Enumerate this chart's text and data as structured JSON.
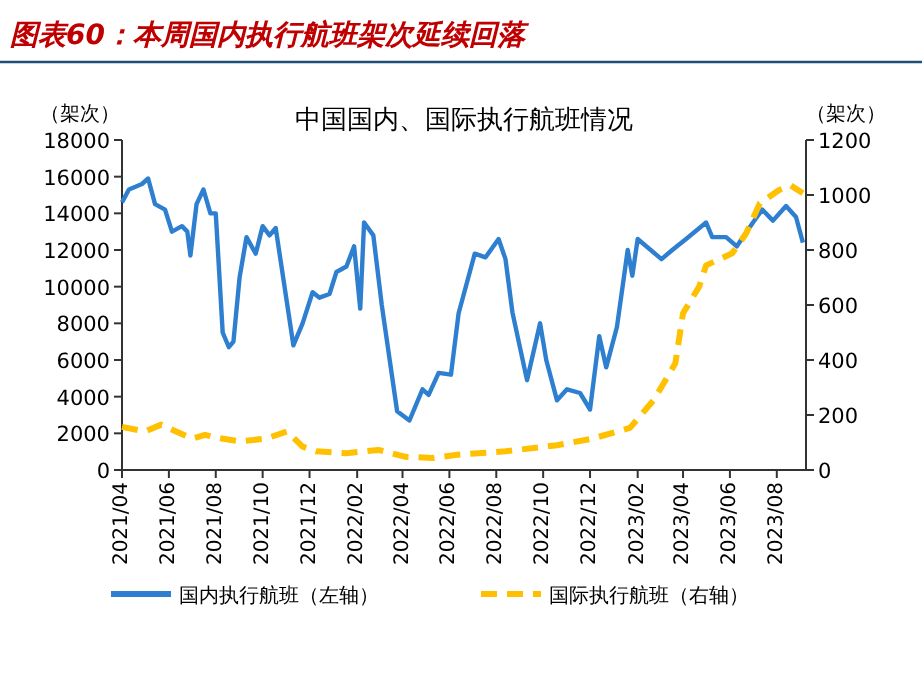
{
  "chart_data": {
    "type": "line",
    "title": "图表60：本周国内执行航班架次延续回落",
    "subtitle": "中国国内、国际执行航班情况",
    "ylabel": "（架次）",
    "y2label": "（架次）",
    "xlim": [
      "2021-04-01",
      "2023-09-08"
    ],
    "xticks": [
      {
        "value": "2021-04",
        "label": "2021/04"
      },
      {
        "value": "2021-06",
        "label": "2021/06"
      },
      {
        "value": "2021-08",
        "label": "2021/08"
      },
      {
        "value": "2021-10",
        "label": "2021/10"
      },
      {
        "value": "2021-12",
        "label": "2021/12"
      },
      {
        "value": "2022-02",
        "label": "2022/02"
      },
      {
        "value": "2022-04",
        "label": "2022/04"
      },
      {
        "value": "2022-06",
        "label": "2022/06"
      },
      {
        "value": "2022-08",
        "label": "2022/08"
      },
      {
        "value": "2022-10",
        "label": "2022/10"
      },
      {
        "value": "2022-12",
        "label": "2022/12"
      },
      {
        "value": "2023-02",
        "label": "2023/02"
      },
      {
        "value": "2023-04",
        "label": "2023/04"
      },
      {
        "value": "2023-06",
        "label": "2023/06"
      },
      {
        "value": "2023-08",
        "label": "2023/08"
      }
    ],
    "ylim": [
      0,
      18000
    ],
    "yticks": [
      0,
      2000,
      4000,
      6000,
      8000,
      10000,
      12000,
      14000,
      16000,
      18000
    ],
    "y2lim": [
      0,
      1200
    ],
    "y2ticks": [
      0,
      200,
      400,
      600,
      800,
      1000,
      1200
    ],
    "grid": false,
    "legend": "bottom",
    "marker": "none",
    "series": [
      {
        "name": "国内执行航班（左轴）",
        "color": "#2e7fd0",
        "line_style": "solid",
        "x": [
          "2021-04-01",
          "2021-04-10",
          "2021-04-27",
          "2021-05-05",
          "2021-05-14",
          "2021-05-27",
          "2021-06-05",
          "2021-06-18",
          "2021-06-25",
          "2021-06-29",
          "2021-07-07",
          "2021-07-16",
          "2021-07-25",
          "2021-08-01",
          "2021-08-10",
          "2021-08-18",
          "2021-08-24",
          "2021-09-01",
          "2021-09-10",
          "2021-09-22",
          "2021-10-01",
          "2021-10-10",
          "2021-10-18",
          "2021-11-10",
          "2021-11-22",
          "2021-12-05",
          "2021-12-14",
          "2021-12-27",
          "2022-01-05",
          "2022-01-18",
          "2022-01-28",
          "2022-02-05",
          "2022-02-10",
          "2022-02-22",
          "2022-03-05",
          "2022-03-25",
          "2022-04-10",
          "2022-04-27",
          "2022-05-05",
          "2022-05-18",
          "2022-06-03",
          "2022-06-13",
          "2022-07-04",
          "2022-07-18",
          "2022-08-04",
          "2022-08-13",
          "2022-08-22",
          "2022-09-10",
          "2022-09-27",
          "2022-10-05",
          "2022-10-19",
          "2022-11-01",
          "2022-11-18",
          "2022-12-01",
          "2022-12-13",
          "2022-12-22",
          "2023-01-05",
          "2023-01-19",
          "2023-01-25",
          "2023-02-01",
          "2023-03-04",
          "2023-03-18",
          "2023-04-05",
          "2023-05-01",
          "2023-05-09",
          "2023-05-27",
          "2023-06-10",
          "2023-07-01",
          "2023-07-13",
          "2023-07-27",
          "2023-08-13",
          "2023-08-26",
          "2023-09-04"
        ],
        "values": [
          14600,
          15300,
          15600,
          15900,
          14500,
          14200,
          13000,
          13300,
          13000,
          11700,
          14500,
          15300,
          14000,
          14000,
          7500,
          6700,
          7000,
          10500,
          12700,
          11800,
          13300,
          12800,
          13200,
          6800,
          8000,
          9700,
          9400,
          9600,
          10800,
          11100,
          12200,
          8800,
          13500,
          12800,
          9000,
          3200,
          2700,
          4400,
          4100,
          5300,
          5200,
          8550,
          11800,
          11600,
          12600,
          11500,
          8600,
          4900,
          8000,
          6000,
          3800,
          4400,
          4200,
          3300,
          7300,
          5600,
          7800,
          12000,
          10600,
          12600,
          11500,
          12000,
          12600,
          13500,
          12700,
          12700,
          12200,
          13500,
          14200,
          13600,
          14400,
          13800,
          12400
        ]
      },
      {
        "name": "国际执行航班（右轴）",
        "color": "#ffc000",
        "line_style": "dashed",
        "axis": "y2",
        "x": [
          "2021-04-01",
          "2021-05-01",
          "2021-05-22",
          "2021-07-01",
          "2021-07-18",
          "2021-08-05",
          "2021-09-01",
          "2021-10-05",
          "2021-11-02",
          "2021-11-22",
          "2021-12-10",
          "2022-01-18",
          "2022-03-01",
          "2022-04-05",
          "2022-05-10",
          "2022-06-14",
          "2022-08-13",
          "2022-10-19",
          "2022-12-04",
          "2023-01-22",
          "2023-02-22",
          "2023-03-22",
          "2023-04-01",
          "2023-04-22",
          "2023-05-01",
          "2023-06-04",
          "2023-06-22",
          "2023-07-10",
          "2023-08-04",
          "2023-08-19",
          "2023-09-04"
        ],
        "values": [
          157,
          140,
          165,
          114,
          128,
          116,
          104,
          114,
          140,
          85,
          68,
          61,
          73,
          48,
          44,
          56,
          68,
          90,
          114,
          153,
          255,
          388,
          570,
          667,
          744,
          788,
          860,
          970,
          1018,
          1035,
          1006
        ]
      }
    ]
  }
}
